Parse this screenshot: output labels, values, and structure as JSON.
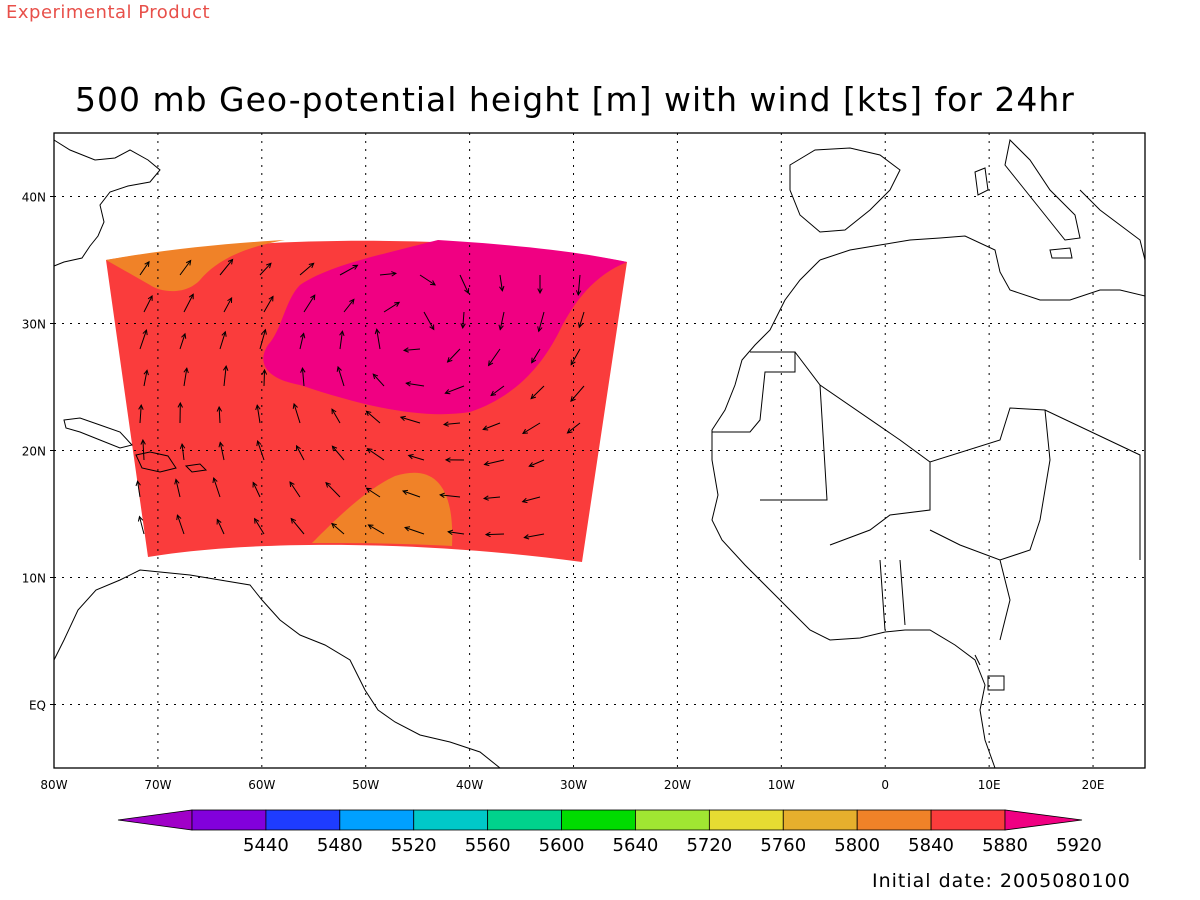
{
  "header": {
    "product_label": "Experimental Product"
  },
  "map": {
    "title": "500 mb Geo-potential height [m] with wind [kts] for 24hr",
    "x_ticks": [
      "80W",
      "70W",
      "60W",
      "50W",
      "40W",
      "30W",
      "20W",
      "10W",
      "0",
      "10E",
      "20E"
    ],
    "y_ticks": [
      "40N",
      "30N",
      "20N",
      "10N",
      "EQ"
    ],
    "lon_range": [
      -80,
      25
    ],
    "lat_range": [
      -5,
      45
    ],
    "grid": "dotted"
  },
  "colorbar": {
    "levels": [
      "5440",
      "5480",
      "5520",
      "5560",
      "5600",
      "5640",
      "5720",
      "5760",
      "5800",
      "5840",
      "5880",
      "5920"
    ],
    "colors": [
      "#a000c8",
      "#8200dc",
      "#1e3cff",
      "#00a0ff",
      "#00c8c8",
      "#00d28c",
      "#00dc00",
      "#a0e632",
      "#e6dc32",
      "#e6af2d",
      "#f08228",
      "#fa3c3c",
      "#f00082"
    ]
  },
  "shading": {
    "main_color": "#fa3c3c",
    "high_color": "#f00082",
    "low_color": "#f08228"
  },
  "footer": {
    "initial_date": "Initial date: 2005080100"
  }
}
